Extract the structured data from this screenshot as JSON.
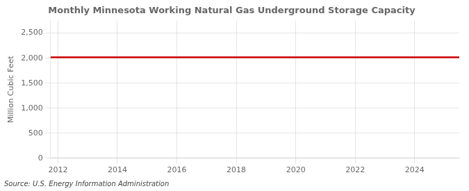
{
  "chart_data": {
    "type": "line",
    "title": "Monthly Minnesota Working Natural Gas Underground Storage Capacity",
    "ylabel": "Million Cubic Feet",
    "annotation": "Source: U.S. Energy Information Administration",
    "x": [
      2011.75,
      2025.5
    ],
    "values": [
      2016,
      2016
    ],
    "color": "#cc0000",
    "xlim": [
      2011.75,
      2025.5
    ],
    "xticks": [
      2012,
      2014,
      2016,
      2018,
      2020,
      2022,
      2024
    ],
    "ylim": [
      0,
      2750
    ],
    "yticks": [
      0,
      500,
      {
        "value": 1000,
        "label": "1,000"
      },
      {
        "value": 1500,
        "label": "1,500"
      },
      {
        "value": 2000,
        "label": "2,000"
      },
      {
        "value": 2500,
        "label": "2,500"
      }
    ],
    "grid": true
  }
}
